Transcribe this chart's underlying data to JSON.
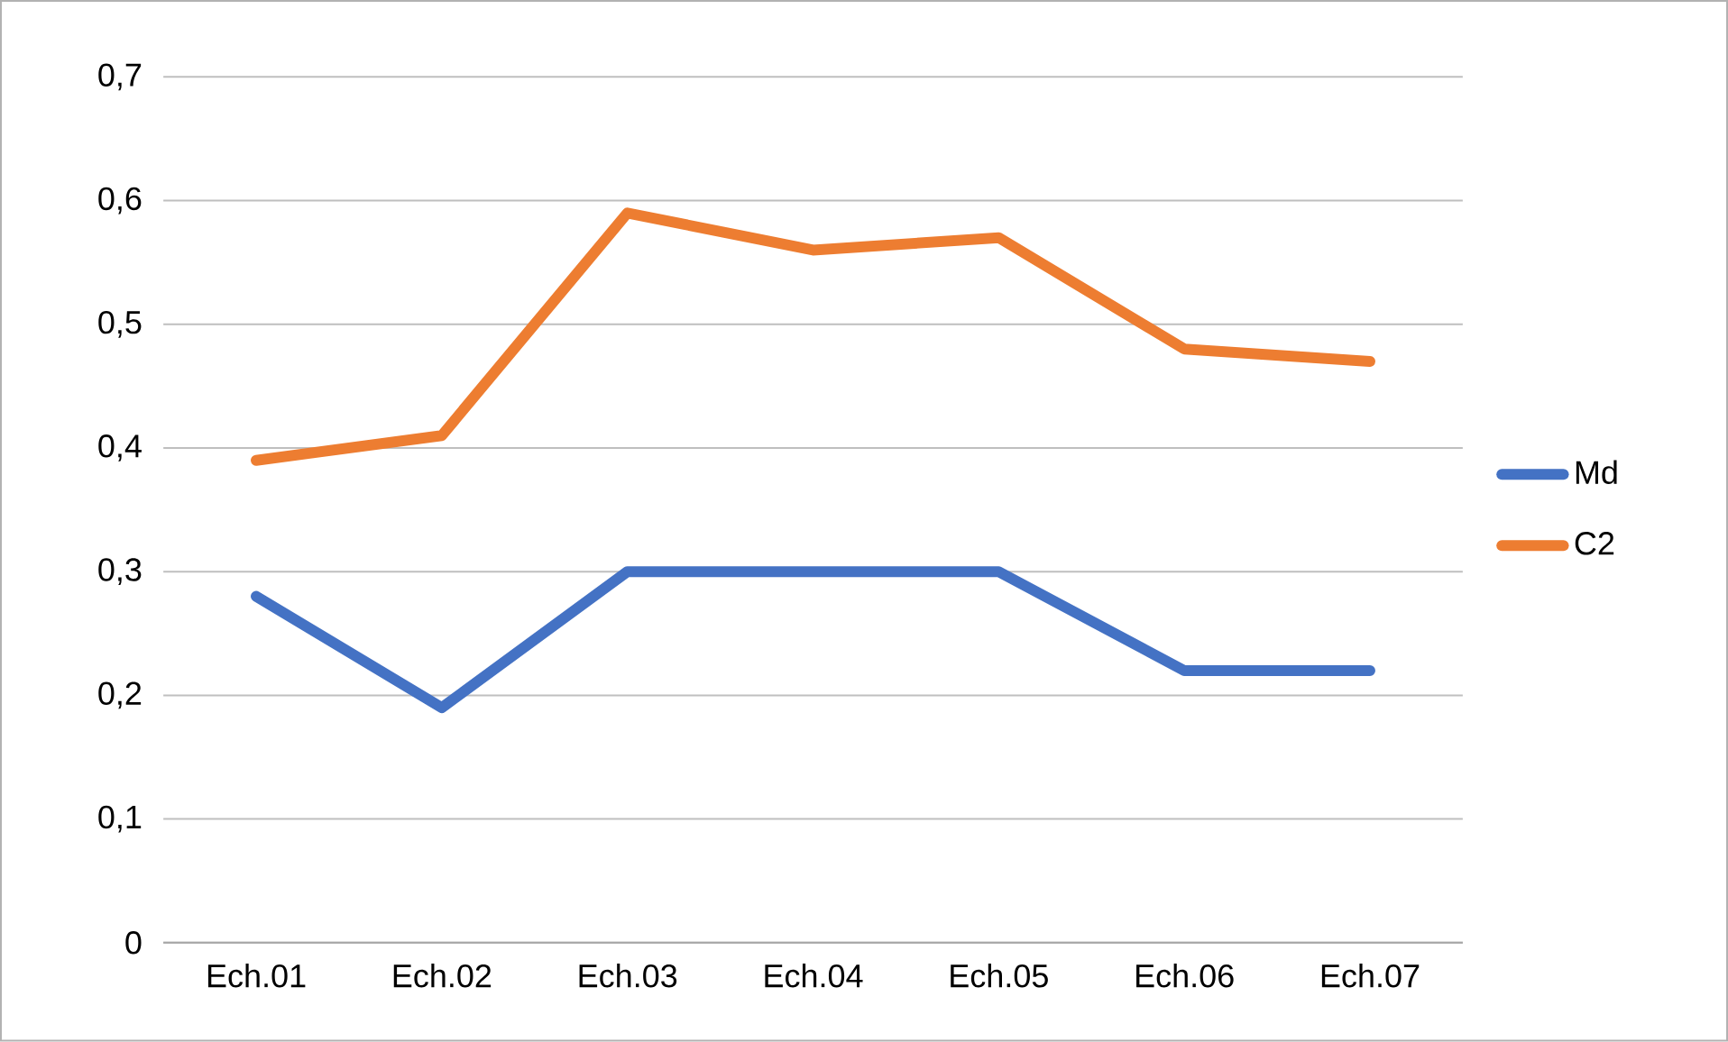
{
  "chart_data": {
    "type": "line",
    "categories": [
      "Ech.01",
      "Ech.02",
      "Ech.03",
      "Ech.04",
      "Ech.05",
      "Ech.06",
      "Ech.07"
    ],
    "series": [
      {
        "name": "Md",
        "color": "#4472c4",
        "values": [
          0.28,
          0.19,
          0.3,
          0.3,
          0.3,
          0.22,
          0.22
        ]
      },
      {
        "name": "C2",
        "color": "#ed7d31",
        "values": [
          0.39,
          0.41,
          0.59,
          0.56,
          0.57,
          0.48,
          0.47
        ]
      }
    ],
    "ylim": [
      0,
      0.7
    ],
    "yticks": [
      0,
      {
        "value": 0.1,
        "label": "0,1"
      },
      {
        "value": 0.2,
        "label": "0,2"
      },
      {
        "value": 0.3,
        "label": "0,3"
      },
      {
        "value": 0.4,
        "label": "0,4"
      },
      {
        "value": 0.5,
        "label": "0,5"
      },
      {
        "value": 0.6,
        "label": "0,6"
      },
      {
        "value": 0.7,
        "label": "0,7"
      }
    ],
    "grid": "y",
    "legend": "right",
    "marker": "none",
    "line_style": "solid"
  }
}
